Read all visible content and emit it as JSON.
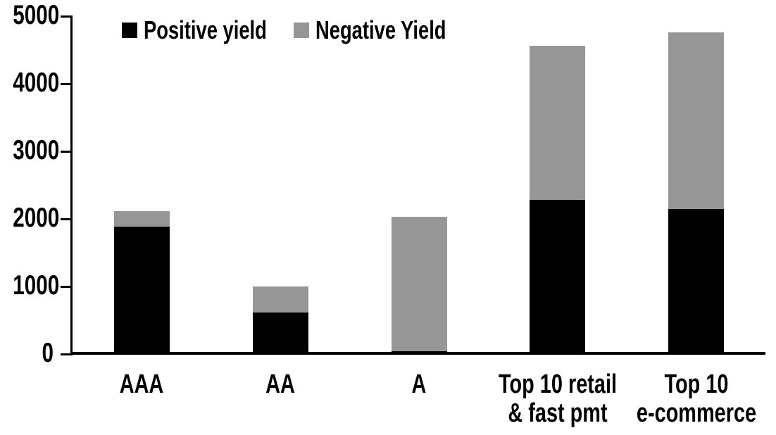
{
  "chart_data": {
    "type": "bar",
    "stacked": true,
    "categories": [
      "AAA",
      "AA",
      "A",
      "Top 10 retail\n& fast pmt",
      "Top 10\ne-commerce"
    ],
    "series": [
      {
        "name": "Positive yield",
        "color": "#000000",
        "values": [
          1900,
          630,
          50,
          2290,
          2160
        ]
      },
      {
        "name": "Negative Yield",
        "color": "#969696",
        "values": [
          230,
          380,
          1990,
          2280,
          2610
        ]
      }
    ],
    "stack_totals": [
      2130,
      1010,
      2040,
      4570,
      4770
    ],
    "ylim": [
      0,
      5000
    ],
    "yticks": [
      0,
      1000,
      2000,
      3000,
      4000,
      5000
    ],
    "grid": false,
    "legend_position": "top-left-inside",
    "axis_color": "#000000",
    "background_color": "#ffffff"
  }
}
